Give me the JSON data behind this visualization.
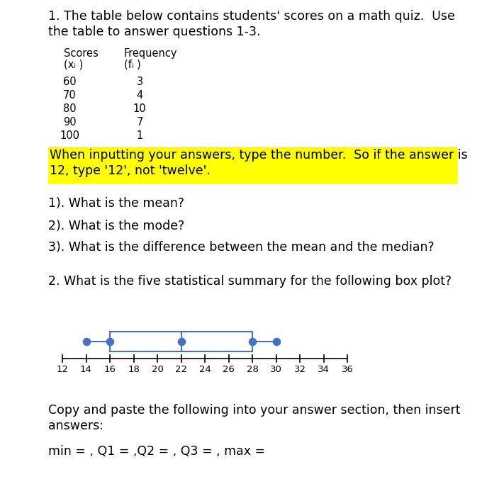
{
  "title_text_line1": "1. The table below contains students' scores on a math quiz.  Use",
  "title_text_line2": "the table to answer questions 1-3.",
  "table_scores": [
    60,
    70,
    80,
    90,
    100
  ],
  "table_freq": [
    3,
    4,
    10,
    7,
    1
  ],
  "col1_header": "Scores",
  "col1_sub": "(xᵢ )",
  "col2_header": "Frequency",
  "col2_sub": "(fᵢ )",
  "highlight_line1": "When inputting your answers, type the number.  So if the answer is",
  "highlight_line2": "12, type '12', not 'twelve'.",
  "highlight_bg": "#FFFF00",
  "q1_text": "1). What is the mean?",
  "q2_text": "2). What is the mode?",
  "q3_text": "3). What is the difference between the mean and the median?",
  "q4_text": "2. What is the five statistical summary for the following box plot?",
  "boxplot_min": 14,
  "boxplot_q1": 16,
  "boxplot_q2": 22,
  "boxplot_q3": 28,
  "boxplot_max": 30,
  "boxplot_axis_min": 12,
  "boxplot_axis_max": 36,
  "boxplot_axis_step": 2,
  "boxplot_color": "#4472c4",
  "copy_line1": "Copy and paste the following into your answer section, then insert",
  "copy_line2": "answers:",
  "min_text": "min = , Q1 = ,Q2 = , Q3 = , max =",
  "bg_color": "#ffffff",
  "text_color": "#000000",
  "font_size_main": 12.5,
  "font_size_table": 10.5,
  "font_size_small": 9.5
}
